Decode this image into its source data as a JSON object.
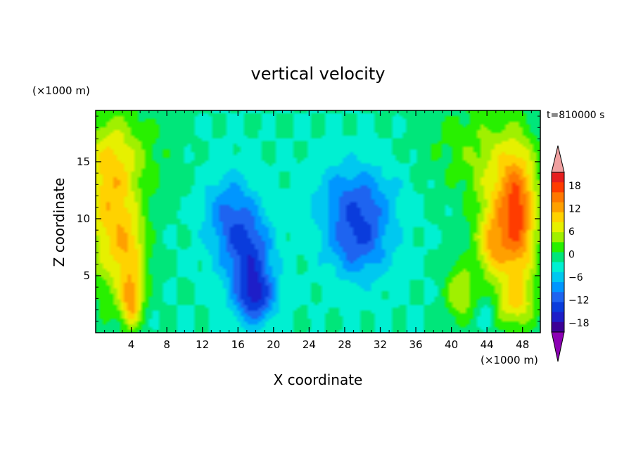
{
  "chart_data": {
    "type": "heatmap",
    "title": "vertical velocity",
    "xlabel": "X coordinate",
    "ylabel": "Z coordinate",
    "x_unit": "(×1000 m)",
    "y_unit": "(×1000 m)",
    "time_label": "t=810000 s",
    "xlim": [
      0,
      50
    ],
    "ylim": [
      0,
      19.5
    ],
    "x_ticks": [
      4,
      8,
      12,
      16,
      20,
      24,
      28,
      32,
      36,
      40,
      44,
      48
    ],
    "y_ticks": [
      5,
      10,
      15
    ],
    "colorbar": {
      "levels": [
        -21,
        -18,
        -15,
        -12,
        -9,
        -6,
        -3,
        0,
        3,
        6,
        9,
        12,
        15,
        18,
        21
      ],
      "tick_labels": [
        "18",
        "12",
        "6",
        "0",
        "−6",
        "−12",
        "−18"
      ],
      "colors": [
        "#7f00a8",
        "#3c0096",
        "#1e1ec8",
        "#0a3cdc",
        "#1e64f0",
        "#0096ff",
        "#00c8f0",
        "#00f0d2",
        "#00e67a",
        "#28f000",
        "#a0f000",
        "#e6f000",
        "#ffd200",
        "#ffa000",
        "#ff7800",
        "#ff3c00",
        "#e61e1e",
        "#f0a0a0"
      ],
      "over_color": "#f0a0a0",
      "under_color": "#8c00b4"
    },
    "features": [
      {
        "x": 1.5,
        "z": 10.5,
        "value": 12,
        "sx": 2.0,
        "sz": 5.0
      },
      {
        "x": 4.0,
        "z": 6.5,
        "value": 10,
        "sx": 1.4,
        "sz": 3.0
      },
      {
        "x": 4.0,
        "z": 2.5,
        "value": 12,
        "sx": 0.8,
        "sz": 1.5
      },
      {
        "x": 3.0,
        "z": 15.5,
        "value": 6,
        "sx": 3.5,
        "sz": 3.0
      },
      {
        "x": 15.0,
        "z": 10.0,
        "value": -9,
        "sx": 2.0,
        "sz": 2.8
      },
      {
        "x": 17.5,
        "z": 6.0,
        "value": -12,
        "sx": 1.8,
        "sz": 3.0
      },
      {
        "x": 18.0,
        "z": 3.0,
        "value": -9,
        "sx": 1.5,
        "sz": 1.5
      },
      {
        "x": 29.5,
        "z": 8.5,
        "value": -12,
        "sx": 2.6,
        "sz": 2.6
      },
      {
        "x": 29.0,
        "z": 12.5,
        "value": -6,
        "sx": 3.5,
        "sz": 2.0
      },
      {
        "x": 47.5,
        "z": 9.5,
        "value": 15,
        "sx": 1.5,
        "sz": 4.5
      },
      {
        "x": 46.0,
        "z": 12.0,
        "value": 10,
        "sx": 2.5,
        "sz": 4.0
      },
      {
        "x": 44.5,
        "z": 7.5,
        "value": 10,
        "sx": 1.2,
        "sz": 2.0
      },
      {
        "x": 41.0,
        "z": 3.5,
        "value": 9,
        "sx": 1.2,
        "sz": 1.8
      },
      {
        "x": 44.0,
        "z": 2.0,
        "value": -4,
        "sx": 0.6,
        "sz": 1.0
      },
      {
        "x": 47.0,
        "z": 2.5,
        "value": 8,
        "sx": 1.8,
        "sz": 1.5
      },
      {
        "x": 41.5,
        "z": 16.5,
        "value": 4,
        "sx": 3.5,
        "sz": 3.0
      }
    ]
  }
}
